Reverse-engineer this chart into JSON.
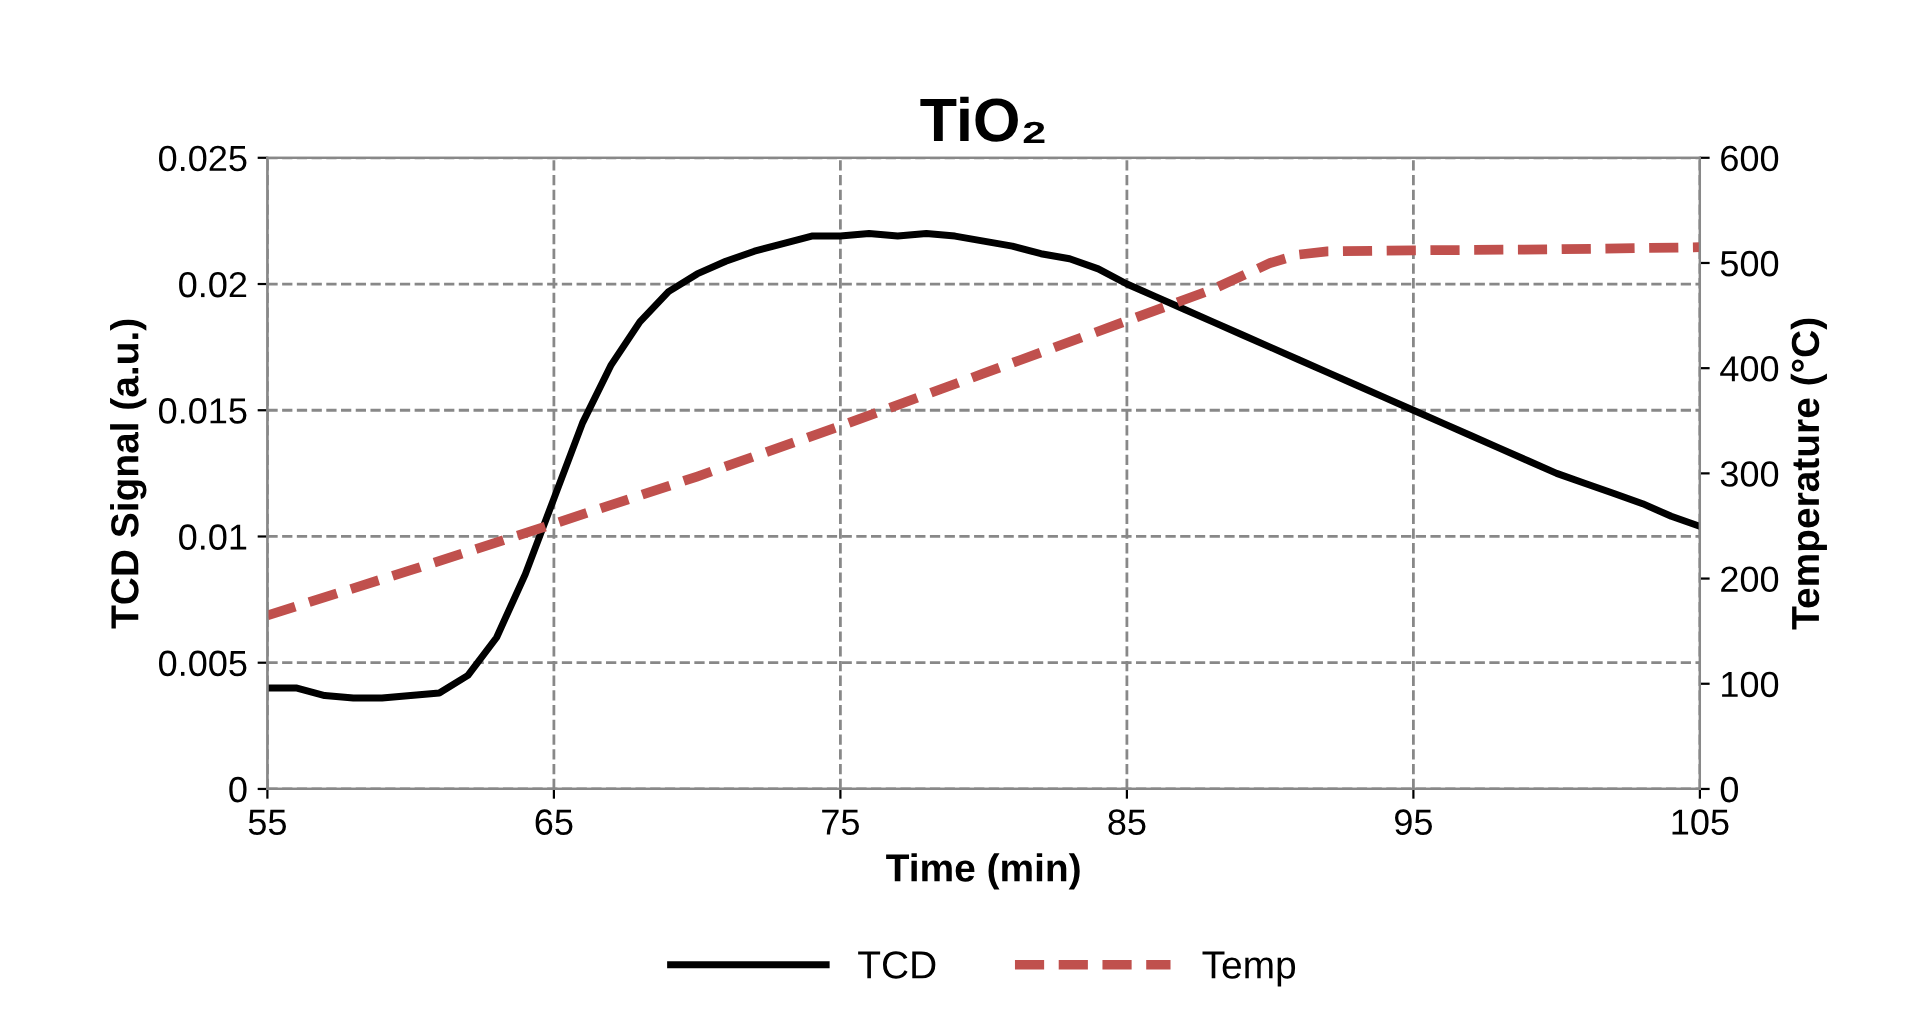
{
  "chart_data": {
    "type": "line",
    "title": "TiO₂",
    "xlabel": "Time (min)",
    "ylabel": "TCD Signal (a.u.)",
    "y2label": "Temperature (°C)",
    "xlim": [
      55,
      105
    ],
    "xticks": [
      55,
      65,
      75,
      85,
      95,
      105
    ],
    "ylim": [
      0,
      0.025
    ],
    "yticks": [
      0,
      0.005,
      0.01,
      0.015,
      0.02,
      0.025
    ],
    "y2lim": [
      0,
      600
    ],
    "y2ticks": [
      0,
      100,
      200,
      300,
      400,
      500,
      600
    ],
    "grid": true,
    "legend": "bottom",
    "series": [
      {
        "name": "TCD",
        "color": "#000000",
        "line_style": "solid",
        "x": [
          55,
          56,
          57,
          58,
          59,
          60,
          61,
          62,
          63,
          64,
          65,
          66,
          67,
          68,
          69,
          70,
          71,
          72,
          73,
          74,
          75,
          76,
          77,
          78,
          79,
          80,
          81,
          82,
          83,
          84,
          85,
          86,
          87,
          88,
          89,
          90,
          91,
          92,
          93,
          94,
          95,
          96,
          97,
          98,
          99,
          100,
          101,
          102,
          103,
          104,
          105
        ],
        "values": [
          0.004,
          0.004,
          0.0037,
          0.0036,
          0.0036,
          0.0037,
          0.0038,
          0.0045,
          0.006,
          0.0085,
          0.0115,
          0.0145,
          0.0168,
          0.0185,
          0.0197,
          0.0204,
          0.0209,
          0.0213,
          0.0216,
          0.0219,
          0.0219,
          0.022,
          0.0219,
          0.022,
          0.0219,
          0.0217,
          0.0215,
          0.0212,
          0.021,
          0.0206,
          0.02,
          0.0195,
          0.019,
          0.0185,
          0.018,
          0.0175,
          0.017,
          0.0165,
          0.016,
          0.0155,
          0.015,
          0.0145,
          0.014,
          0.0135,
          0.013,
          0.0125,
          0.0121,
          0.0117,
          0.0113,
          0.0108,
          0.0104
        ]
      },
      {
        "name": "Temp",
        "color": "#c0504d",
        "line_style": "dashed",
        "axis": "y2",
        "x": [
          55,
          60,
          65,
          70,
          75,
          80,
          85,
          88,
          90,
          91,
          92,
          95,
          100,
          105
        ],
        "values": [
          165,
          208,
          252,
          297,
          345,
          395,
          445,
          475,
          500,
          508,
          511,
          512,
          513,
          515
        ]
      }
    ]
  }
}
